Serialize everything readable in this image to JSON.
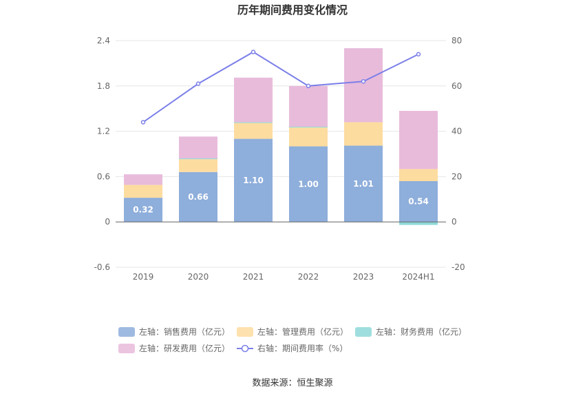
{
  "chart_data": {
    "type": "bar",
    "title": "历年期间费用变化情况",
    "categories": [
      "2019",
      "2020",
      "2021",
      "2022",
      "2023",
      "2024H1"
    ],
    "y_left": {
      "min": -0.6,
      "max": 2.4,
      "ticks": [
        "2.4",
        "1.8",
        "1.2",
        "0.6",
        "0",
        "-0.6"
      ]
    },
    "y_right": {
      "min": -20,
      "max": 80,
      "ticks": [
        "80",
        "60",
        "40",
        "20",
        "0",
        "-20"
      ]
    },
    "series": [
      {
        "name": "左轴：销售费用（亿元）",
        "type": "bar",
        "stack": "cost",
        "color": "#8eaedb",
        "values": [
          0.32,
          0.66,
          1.1,
          1.0,
          1.01,
          0.54
        ],
        "labels": [
          "0.32",
          "0.66",
          "1.10",
          "1.00",
          "1.01",
          "0.54"
        ]
      },
      {
        "name": "左轴：管理费用（亿元）",
        "type": "bar",
        "stack": "cost",
        "color": "#fddca0",
        "values": [
          0.17,
          0.17,
          0.21,
          0.25,
          0.31,
          0.16
        ]
      },
      {
        "name": "左轴：财务费用（亿元）",
        "type": "bar",
        "stack": "cost",
        "color": "#8ed8d8",
        "values": [
          0.0,
          0.01,
          0.01,
          0.01,
          0.0,
          -0.04
        ]
      },
      {
        "name": "左轴：研发费用（亿元）",
        "type": "bar",
        "stack": "cost",
        "color": "#e8bbdb",
        "values": [
          0.14,
          0.29,
          0.59,
          0.54,
          0.98,
          0.77
        ]
      },
      {
        "name": "右轴：期间费用率（%）",
        "type": "line",
        "axis": "right",
        "color": "#7b7fe8",
        "values": [
          44,
          61,
          75,
          60,
          62,
          74
        ]
      }
    ],
    "grid": true,
    "legend": "bottom"
  },
  "source": "数据来源：恒生聚源"
}
